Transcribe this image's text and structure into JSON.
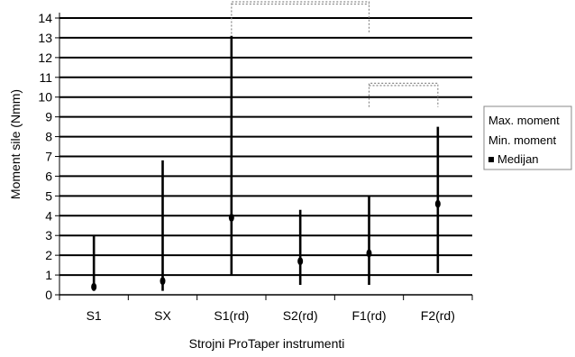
{
  "chart_data": {
    "type": "range",
    "title": "",
    "xlabel": "Strojni ProTaper instrumenti",
    "ylabel": "Moment sile (Nmm)",
    "ylim": [
      0,
      14
    ],
    "yticks": [
      0,
      1,
      2,
      3,
      4,
      5,
      6,
      7,
      8,
      9,
      10,
      11,
      12,
      13,
      14
    ],
    "grid": true,
    "categories": [
      "S1",
      "SX",
      "S1(rd)",
      "S2(rd)",
      "F1(rd)",
      "F2(rd)"
    ],
    "series": [
      {
        "name": "Max. moment",
        "values": [
          3.0,
          6.8,
          13.1,
          4.3,
          5.0,
          8.5
        ]
      },
      {
        "name": "Min. moment",
        "values": [
          0.2,
          0.2,
          1.0,
          0.5,
          0.5,
          1.1
        ]
      },
      {
        "name": "Medijan",
        "values": [
          0.4,
          0.7,
          3.9,
          1.7,
          2.1,
          4.6
        ]
      }
    ],
    "brackets": [
      {
        "from": "S1(rd)",
        "to": "F1(rd)",
        "y_from": 13.2,
        "y_top": 15.0
      },
      {
        "from": "F1(rd)",
        "to": "F2(rd)",
        "y_from": 9.5,
        "y_top": 10.7
      }
    ],
    "legend": {
      "position": "right",
      "entries": [
        "Max. moment",
        "Min. moment",
        "Medijan"
      ]
    },
    "colors": {
      "lines": "#000000",
      "bracket": "#888888",
      "legend_border": "#888888"
    }
  }
}
